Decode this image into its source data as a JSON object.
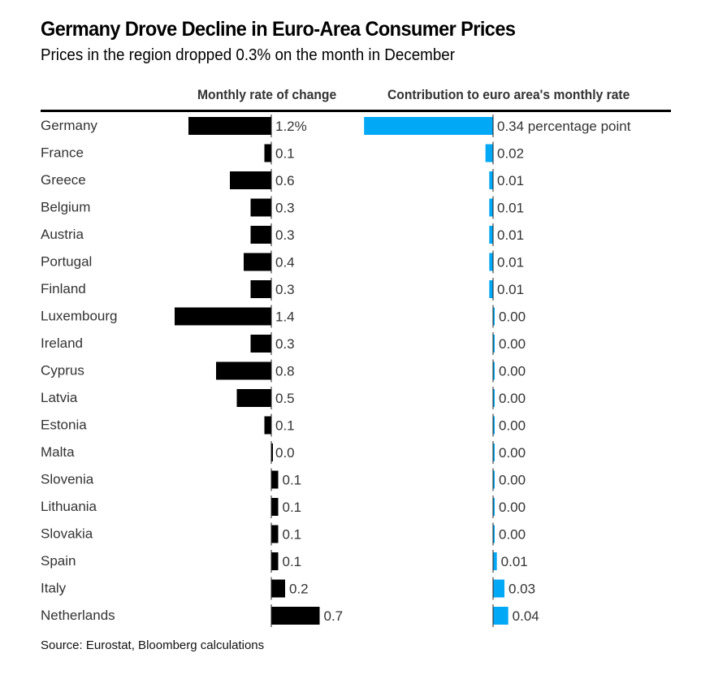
{
  "header": {
    "title": "Germany Drove Decline in Euro-Area Consumer Prices",
    "subtitle": "Prices in the region dropped 0.3% on the month in December"
  },
  "footer": {
    "source": "Source: Eurostat, Bloomberg calculations"
  },
  "chart_data": [
    {
      "type": "bar",
      "orientation": "horizontal",
      "title": "Monthly rate of change",
      "unit": "%",
      "color": "#000000",
      "categories": [
        "Germany",
        "France",
        "Greece",
        "Belgium",
        "Austria",
        "Portugal",
        "Finland",
        "Luxembourg",
        "Ireland",
        "Cyprus",
        "Latvia",
        "Estonia",
        "Malta",
        "Slovenia",
        "Lithuania",
        "Slovakia",
        "Spain",
        "Italy",
        "Netherlands"
      ],
      "values": [
        -1.2,
        -0.1,
        -0.6,
        -0.3,
        -0.3,
        -0.4,
        -0.3,
        -1.4,
        -0.3,
        -0.8,
        -0.5,
        -0.1,
        0.0,
        0.1,
        0.1,
        0.1,
        0.1,
        0.2,
        0.7
      ],
      "labels": [
        "1.2%",
        "0.1",
        "0.6",
        "0.3",
        "0.3",
        "0.4",
        "0.3",
        "1.4",
        "0.3",
        "0.8",
        "0.5",
        "0.1",
        "0.0",
        "0.1",
        "0.1",
        "0.1",
        "0.1",
        "0.2",
        "0.7"
      ],
      "xlim": [
        -1.4,
        0.7
      ],
      "grid": false
    },
    {
      "type": "bar",
      "orientation": "horizontal",
      "title": "Contribution to euro area's monthly rate",
      "unit": "percentage point",
      "color": "#00A8F5",
      "categories": [
        "Germany",
        "France",
        "Greece",
        "Belgium",
        "Austria",
        "Portugal",
        "Finland",
        "Luxembourg",
        "Ireland",
        "Cyprus",
        "Latvia",
        "Estonia",
        "Malta",
        "Slovenia",
        "Lithuania",
        "Slovakia",
        "Spain",
        "Italy",
        "Netherlands"
      ],
      "values": [
        -0.34,
        -0.02,
        -0.01,
        -0.01,
        -0.01,
        -0.01,
        -0.01,
        0.001,
        0.001,
        0.001,
        0.001,
        0.001,
        0.001,
        0.001,
        0.001,
        0.001,
        0.01,
        0.03,
        0.04
      ],
      "labels": [
        "0.34 percentage point",
        "0.02",
        "0.01",
        "0.01",
        "0.01",
        "0.01",
        "0.01",
        "0.00",
        "0.00",
        "0.00",
        "0.00",
        "0.00",
        "0.00",
        "0.00",
        "0.00",
        "0.00",
        "0.01",
        "0.03",
        "0.04"
      ],
      "xlim": [
        -0.34,
        0.04
      ],
      "grid": false
    }
  ]
}
